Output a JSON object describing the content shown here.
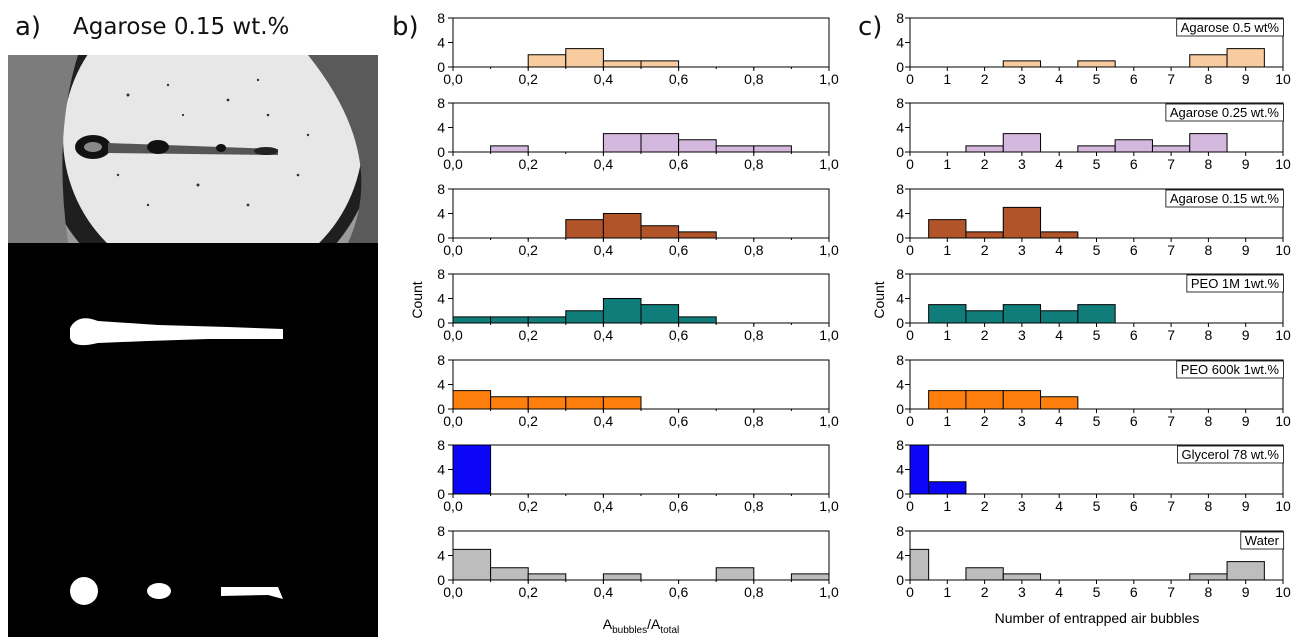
{
  "labels": {
    "a": "a)",
    "a_title": "Agarose 0.15 wt.%",
    "b": "b)",
    "c": "c)"
  },
  "colors": {
    "agarose_05": "#f8cc9f",
    "agarose_025": "#d5b8dd",
    "agarose_015": "#b25429",
    "peo_1m": "#117d7b",
    "peo_600k": "#fe7f0e",
    "glycerol": "#0b06f8",
    "water": "#bdbdbd"
  },
  "chart_data": [
    {
      "type": "bar",
      "panel": "b",
      "xlabel": "A",
      "xlabel_sub1": "bubbles",
      "xlabel_sep": "/A",
      "xlabel_sub2": "total",
      "ylabel": "Count",
      "xlim": [
        0,
        1.0
      ],
      "ylim": [
        0,
        8
      ],
      "yticks": [
        "0",
        "4",
        "8"
      ],
      "xticks": [
        "0,0",
        "0,2",
        "0,4",
        "0,6",
        "0,8",
        "1,0"
      ],
      "bin_width": 0.1,
      "series": [
        {
          "bins": [
            0.2,
            0.3,
            0.4,
            0.5
          ],
          "values": [
            2,
            3,
            1,
            1
          ]
        },
        {
          "bins": [
            0.1,
            0.4,
            0.5,
            0.6,
            0.7,
            0.8
          ],
          "values": [
            1,
            3,
            3,
            2,
            1,
            1
          ]
        },
        {
          "bins": [
            0.3,
            0.4,
            0.5,
            0.6
          ],
          "values": [
            3,
            4,
            2,
            1
          ]
        },
        {
          "bins": [
            0.0,
            0.1,
            0.2,
            0.3,
            0.4,
            0.5,
            0.6
          ],
          "values": [
            1,
            1,
            1,
            2,
            4,
            3,
            1
          ]
        },
        {
          "bins": [
            0.0,
            0.1,
            0.2,
            0.3,
            0.4
          ],
          "values": [
            3,
            2,
            2,
            2,
            2
          ]
        },
        {
          "bins": [
            0.0
          ],
          "values": [
            8
          ]
        },
        {
          "bins": [
            0.0,
            0.1,
            0.2,
            0.4,
            0.7,
            0.9
          ],
          "values": [
            5,
            2,
            1,
            1,
            2,
            1
          ]
        }
      ]
    },
    {
      "type": "bar",
      "panel": "c",
      "xlabel": "Number of entrapped air bubbles",
      "ylabel": "Count",
      "xlim": [
        0,
        10
      ],
      "ylim": [
        0,
        8
      ],
      "yticks": [
        "0",
        "4",
        "8"
      ],
      "xticks": [
        "0",
        "1",
        "2",
        "3",
        "4",
        "5",
        "6",
        "7",
        "8",
        "9",
        "10"
      ],
      "bin_width": 1,
      "series": [
        {
          "name": "Agarose 0.5 wt%",
          "bins": [
            2.5,
            4.5,
            7.5,
            8.5
          ],
          "values": [
            1,
            1,
            2,
            3
          ]
        },
        {
          "name": "Agarose 0.25 wt.%",
          "bins": [
            1.5,
            2.5,
            4.5,
            5.5,
            6.5,
            7.5
          ],
          "values": [
            1,
            3,
            1,
            2,
            1,
            3
          ]
        },
        {
          "name": "Agarose 0.15 wt.%",
          "bins": [
            0.5,
            1.5,
            2.5,
            3.5
          ],
          "values": [
            3,
            1,
            5,
            1
          ]
        },
        {
          "name": "PEO 1M 1wt.%",
          "bins": [
            0.5,
            1.5,
            2.5,
            3.5,
            4.5
          ],
          "values": [
            3,
            2,
            3,
            2,
            3
          ]
        },
        {
          "name": "PEO 600k 1wt.%",
          "bins": [
            0.5,
            1.5,
            2.5,
            3.5
          ],
          "values": [
            3,
            3,
            3,
            2
          ]
        },
        {
          "name": "Glycerol 78 wt.%",
          "bins": [
            0,
            0.5
          ],
          "widths": [
            0.5,
            1
          ],
          "values": [
            8,
            2
          ]
        },
        {
          "name": "Water",
          "bins": [
            0,
            1.5,
            2.5,
            7.5,
            8.5
          ],
          "widths": [
            0.5,
            1,
            1,
            1,
            1
          ],
          "values": [
            5,
            2,
            1,
            1,
            3
          ]
        }
      ]
    }
  ]
}
